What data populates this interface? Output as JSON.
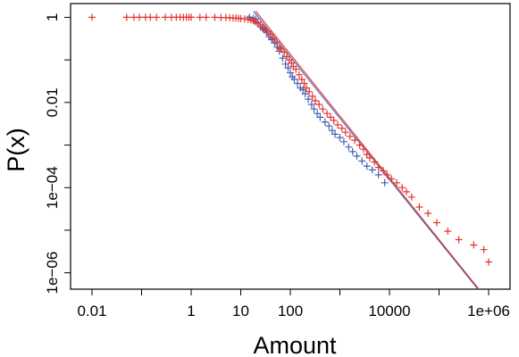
{
  "chart_data": {
    "type": "scatter",
    "title": "",
    "xlabel": "Amount",
    "ylabel": "P(x)",
    "x_scale": "log",
    "y_scale": "log",
    "xlim": [
      0.01,
      1000000
    ],
    "ylim": [
      5e-07,
      1.3
    ],
    "grid": false,
    "legend": "none",
    "x_ticks": [
      {
        "value": 0.01,
        "label": "0.01"
      },
      {
        "value": 1,
        "label": "1"
      },
      {
        "value": 10,
        "label": "10"
      },
      {
        "value": 100,
        "label": "100"
      },
      {
        "value": 10000,
        "label": "10000"
      },
      {
        "value": 1000000,
        "label": "1e+06"
      }
    ],
    "x_minor_ticks": [
      0.1,
      1000,
      100000
    ],
    "y_ticks": [
      {
        "value": 1,
        "label": "1"
      },
      {
        "value": 0.01,
        "label": "0.01"
      },
      {
        "value": 0.0001,
        "label": "1e−04"
      },
      {
        "value": 1e-06,
        "label": "1e−06"
      }
    ],
    "y_minor_ticks": [
      0.1,
      0.001,
      1e-05
    ],
    "series": [
      {
        "type": "scatter",
        "marker": "+",
        "color": "#4a5fb5",
        "points": [
          [
            15,
            1.0
          ],
          [
            18,
            0.95
          ],
          [
            20,
            0.9
          ],
          [
            22,
            0.75
          ],
          [
            25,
            0.6
          ],
          [
            28,
            0.55
          ],
          [
            30,
            0.5
          ],
          [
            33,
            0.45
          ],
          [
            37,
            0.35
          ],
          [
            42,
            0.3
          ],
          [
            48,
            0.25
          ],
          [
            55,
            0.2
          ],
          [
            60,
            0.16
          ],
          [
            70,
            0.11
          ],
          [
            80,
            0.08
          ],
          [
            90,
            0.065
          ],
          [
            100,
            0.05
          ],
          [
            110,
            0.04
          ],
          [
            120,
            0.035
          ],
          [
            140,
            0.028
          ],
          [
            160,
            0.022
          ],
          [
            180,
            0.02
          ],
          [
            200,
            0.016
          ],
          [
            230,
            0.012
          ],
          [
            270,
            0.009
          ],
          [
            300,
            0.007
          ],
          [
            350,
            0.0055
          ],
          [
            400,
            0.0045
          ],
          [
            500,
            0.0035
          ],
          [
            600,
            0.0028
          ],
          [
            700,
            0.0022
          ],
          [
            800,
            0.0018
          ],
          [
            1000,
            0.0015
          ],
          [
            1200,
            0.0012
          ],
          [
            1500,
            0.0009
          ],
          [
            1800,
            0.0007
          ],
          [
            2200,
            0.00055
          ],
          [
            2800,
            0.00042
          ],
          [
            3500,
            0.00032
          ],
          [
            4500,
            0.00026
          ],
          [
            6000,
            0.0002
          ],
          [
            8000,
            0.00013
          ]
        ]
      },
      {
        "type": "scatter",
        "marker": "+",
        "color": "#e0352e",
        "points": [
          [
            0.01,
            1.0
          ],
          [
            0.05,
            1.0
          ],
          [
            0.07,
            1.0
          ],
          [
            0.09,
            1.0
          ],
          [
            0.12,
            1.0
          ],
          [
            0.15,
            1.0
          ],
          [
            0.2,
            1.0
          ],
          [
            0.3,
            1.0
          ],
          [
            0.4,
            1.0
          ],
          [
            0.5,
            1.0
          ],
          [
            0.6,
            1.0
          ],
          [
            0.7,
            1.0
          ],
          [
            0.8,
            1.0
          ],
          [
            0.9,
            1.0
          ],
          [
            1,
            1.0
          ],
          [
            1.5,
            1.0
          ],
          [
            2,
            1.0
          ],
          [
            3,
            1.0
          ],
          [
            4,
            0.99
          ],
          [
            5,
            0.99
          ],
          [
            6,
            0.98
          ],
          [
            7,
            0.97
          ],
          [
            8,
            0.96
          ],
          [
            9,
            0.95
          ],
          [
            10,
            0.94
          ],
          [
            12,
            0.92
          ],
          [
            14,
            0.9
          ],
          [
            16,
            0.87
          ],
          [
            18,
            0.83
          ],
          [
            20,
            0.78
          ],
          [
            22,
            0.72
          ],
          [
            25,
            0.66
          ],
          [
            28,
            0.58
          ],
          [
            31,
            0.52
          ],
          [
            35,
            0.45
          ],
          [
            40,
            0.4
          ],
          [
            45,
            0.32
          ],
          [
            52,
            0.26
          ],
          [
            60,
            0.19
          ],
          [
            65,
            0.18
          ],
          [
            75,
            0.15
          ],
          [
            85,
            0.12
          ],
          [
            95,
            0.1
          ],
          [
            105,
            0.085
          ],
          [
            115,
            0.07
          ],
          [
            130,
            0.06
          ],
          [
            150,
            0.045
          ],
          [
            170,
            0.035
          ],
          [
            190,
            0.028
          ],
          [
            210,
            0.022
          ],
          [
            240,
            0.018
          ],
          [
            280,
            0.014
          ],
          [
            320,
            0.011
          ],
          [
            380,
            0.009
          ],
          [
            450,
            0.007
          ],
          [
            550,
            0.0055
          ],
          [
            650,
            0.0045
          ],
          [
            750,
            0.0038
          ],
          [
            900,
            0.003
          ],
          [
            1100,
            0.0025
          ],
          [
            1300,
            0.002
          ],
          [
            1600,
            0.0016
          ],
          [
            2000,
            0.0013
          ],
          [
            2500,
            0.001
          ],
          [
            3000,
            0.0008
          ],
          [
            3500,
            0.0006
          ],
          [
            4000,
            0.0005
          ],
          [
            5000,
            0.0004
          ],
          [
            6000,
            0.0003
          ],
          [
            7500,
            0.00025
          ],
          [
            9000,
            0.0002
          ],
          [
            11000,
            0.00016
          ],
          [
            14000,
            0.00013
          ],
          [
            18000,
            0.0001
          ],
          [
            22000,
            8e-05
          ],
          [
            28000,
            6e-05
          ],
          [
            40000,
            3.5e-05
          ],
          [
            60000,
            2.5e-05
          ],
          [
            90000,
            1.5e-05
          ],
          [
            150000,
            9.5e-06
          ],
          [
            250000,
            6e-06
          ],
          [
            500000,
            4.5e-06
          ],
          [
            800000,
            3.5e-06
          ],
          [
            1000000,
            1.8e-06
          ]
        ]
      },
      {
        "type": "line",
        "color": "#4a5fb5",
        "points": [
          [
            18,
            1.4
          ],
          [
            620000,
            4e-07
          ]
        ]
      },
      {
        "type": "line",
        "color": "#e0352e",
        "points": [
          [
            20,
            1.4
          ],
          [
            650000,
            4e-07
          ]
        ]
      }
    ]
  }
}
